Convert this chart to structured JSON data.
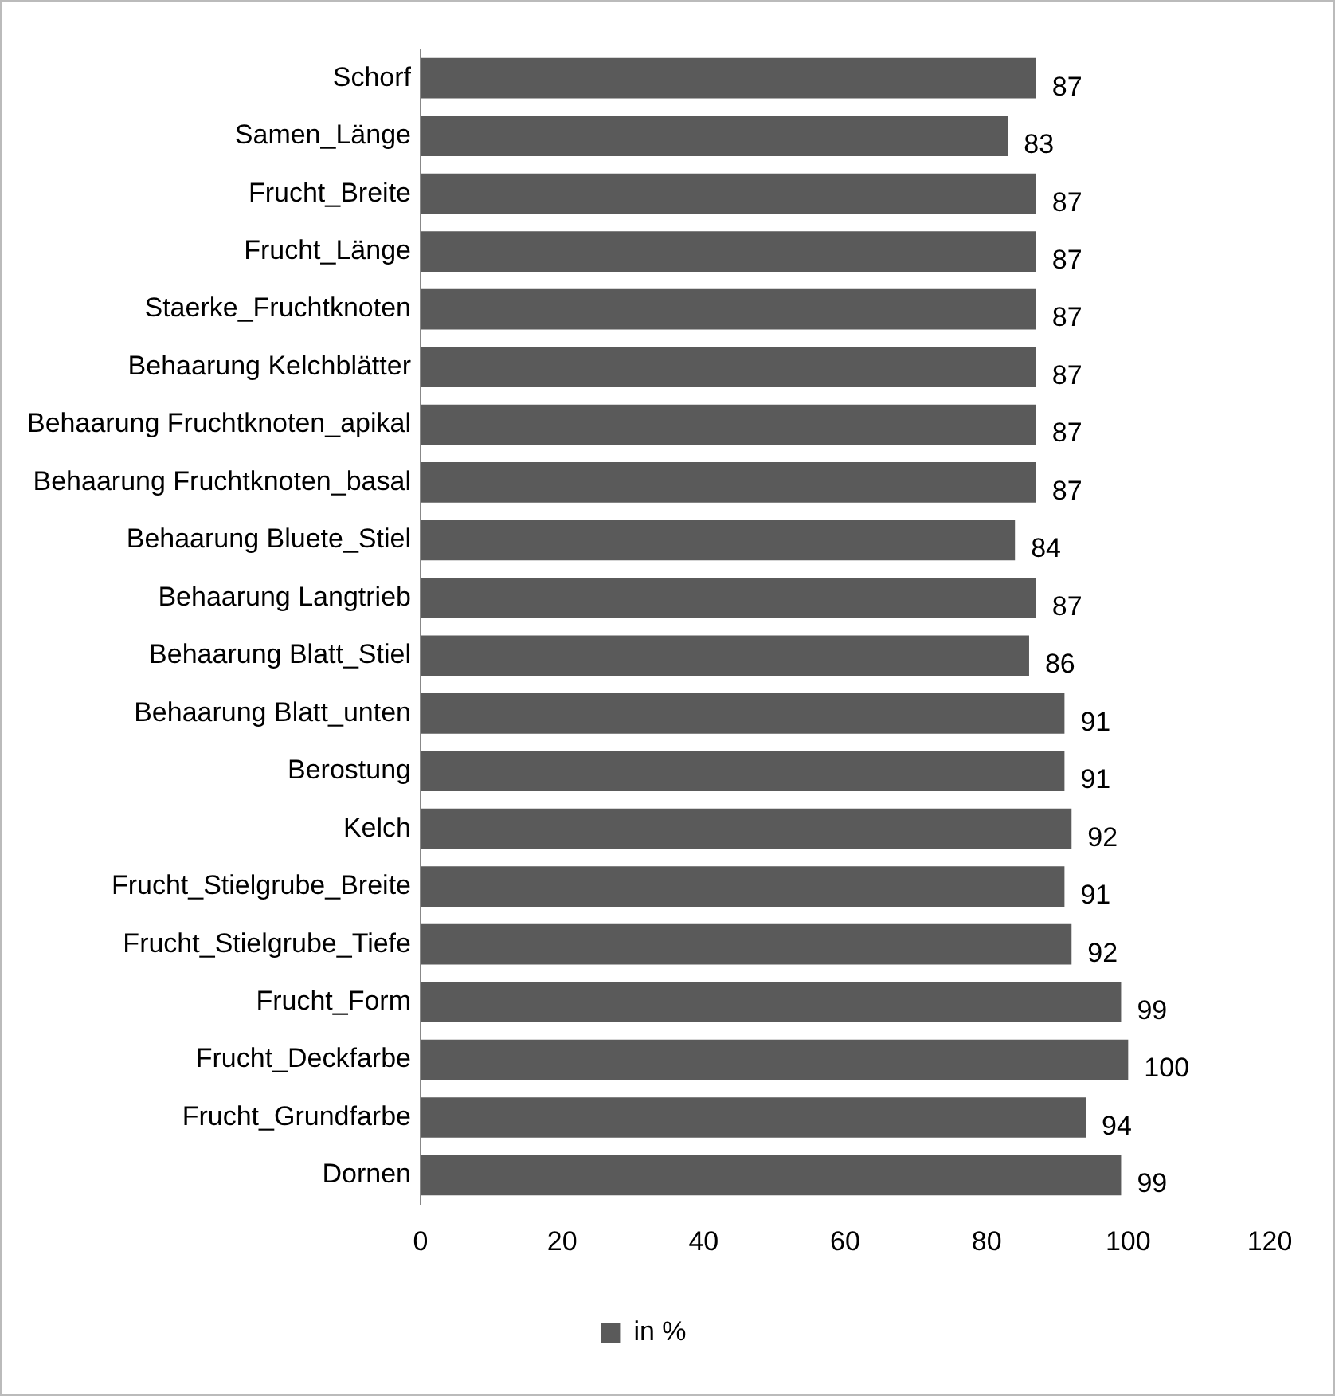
{
  "chart_data": {
    "type": "bar",
    "orientation": "horizontal",
    "categories": [
      "Schorf",
      "Samen_Länge",
      "Frucht_Breite",
      "Frucht_Länge",
      "Staerke_Fruchtknoten",
      "Behaarung Kelchblätter",
      "Behaarung Fruchtknoten_apikal",
      "Behaarung Fruchtknoten_basal",
      "Behaarung Bluete_Stiel",
      "Behaarung Langtrieb",
      "Behaarung Blatt_Stiel",
      "Behaarung Blatt_unten",
      "Berostung",
      "Kelch",
      "Frucht_Stielgrube_Breite",
      "Frucht_Stielgrube_Tiefe",
      "Frucht_Form",
      "Frucht_Deckfarbe",
      "Frucht_Grundfarbe",
      "Dornen"
    ],
    "series": [
      {
        "name": "in %",
        "color": "#5a5a5a",
        "values": [
          87,
          83,
          87,
          87,
          87,
          87,
          87,
          87,
          84,
          87,
          86,
          91,
          91,
          92,
          91,
          92,
          99,
          100,
          94,
          99
        ]
      }
    ],
    "xlim": [
      0,
      120
    ],
    "xticks": [
      0,
      20,
      40,
      60,
      80,
      100,
      120
    ],
    "grid": false,
    "legend": "bottom",
    "data_labels": true
  }
}
